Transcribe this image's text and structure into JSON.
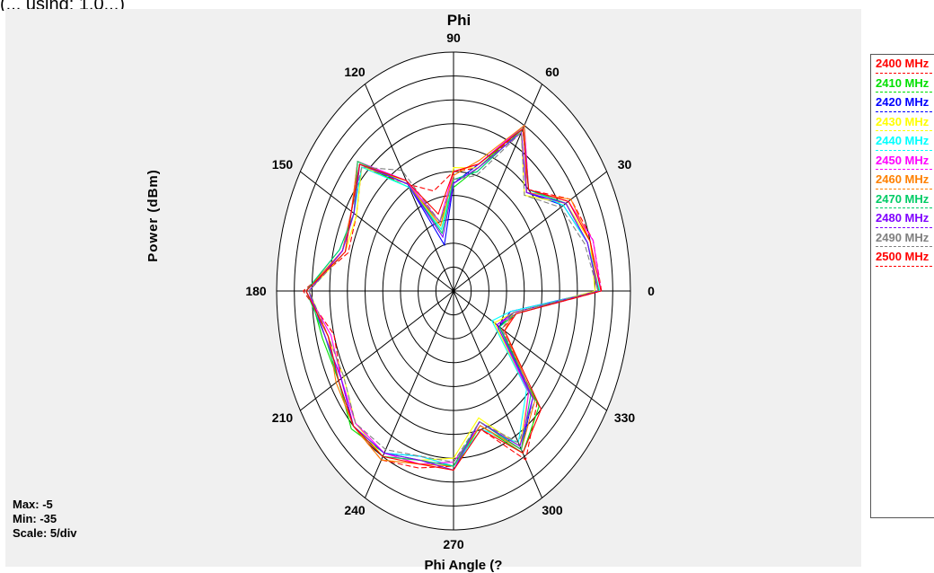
{
  "window": {
    "top_fragment": "(... using: 1.0...)"
  },
  "chart_data": {
    "type": "polar-line",
    "title": "Phi",
    "xlabel": "Phi Angle (?",
    "ylabel": "Power (dBm)",
    "radial_range_dbm": [
      -35,
      -5
    ],
    "radial_step_dbm": 3,
    "angular_labels": [
      "90",
      "60",
      "30",
      "0",
      "330",
      "300",
      "270",
      "240",
      "210",
      "180",
      "150",
      "120"
    ],
    "angles_deg": [
      0,
      15,
      30,
      45,
      60,
      75,
      90,
      105,
      120,
      135,
      150,
      165,
      180,
      195,
      210,
      225,
      240,
      255,
      270,
      285,
      300,
      315,
      330,
      345
    ],
    "grid": true,
    "legend_position": "right",
    "stats": {
      "max": "Max: -5",
      "min": "Min: -35",
      "scale": "Scale: 5/div"
    },
    "series": [
      {
        "name": "2400 MHz",
        "color": "#ff0000",
        "dash": true,
        "values": [
          -9.9,
          -10.5,
          -12,
          -17,
          -11.5,
          -19,
          -20,
          -22,
          -19.5,
          -13,
          -16,
          -16.5,
          -9.5,
          -14,
          -13,
          -11,
          -10.5,
          -12,
          -13,
          -17,
          -10.5,
          -15,
          -25.5,
          -24
        ]
      },
      {
        "name": "2410 MHz",
        "color": "#00e000",
        "dash": false,
        "values": [
          -10.3,
          -11.5,
          -13,
          -17,
          -11,
          -19,
          -22,
          -26,
          -20,
          -12.5,
          -15.5,
          -15.5,
          -10.5,
          -12,
          -12.5,
          -10.5,
          -11.5,
          -13,
          -12.5,
          -17.5,
          -11.5,
          -14.5,
          -26,
          -24.5
        ]
      },
      {
        "name": "2420 MHz",
        "color": "#0000ff",
        "dash": false,
        "values": [
          -10.5,
          -11.5,
          -13.5,
          -17.5,
          -11,
          -18.5,
          -21.5,
          -29,
          -19.5,
          -12.5,
          -15,
          -15.5,
          -10.5,
          -12.5,
          -13,
          -11,
          -11.5,
          -13.5,
          -13,
          -18,
          -12,
          -16,
          -26,
          -25
        ]
      },
      {
        "name": "2430 MHz",
        "color": "#ffff00",
        "dash": false,
        "values": [
          -11,
          -11,
          -13,
          -18,
          -12,
          -19,
          -19.5,
          -27,
          -19,
          -13,
          -16,
          -16,
          -10.5,
          -13,
          -13.5,
          -11.5,
          -11,
          -13,
          -14,
          -18.5,
          -12.5,
          -17,
          -27,
          -24.5
        ]
      },
      {
        "name": "2440 MHz",
        "color": "#00ffff",
        "dash": false,
        "values": [
          -10.2,
          -11.5,
          -13.5,
          -17,
          -11.5,
          -19.5,
          -21,
          -27,
          -20,
          -13,
          -15.5,
          -15,
          -10,
          -13,
          -12.5,
          -11,
          -11.5,
          -13.5,
          -13,
          -17,
          -13,
          -17.5,
          -27.5,
          -25
        ]
      },
      {
        "name": "2450 MHz",
        "color": "#ff00ff",
        "dash": false,
        "values": [
          -10,
          -10.5,
          -12.5,
          -17,
          -11,
          -18.5,
          -20,
          -26,
          -19,
          -12,
          -15,
          -15.5,
          -10,
          -13.5,
          -13,
          -11.5,
          -11.5,
          -12.5,
          -13.5,
          -17.5,
          -12,
          -17,
          -26.5,
          -24
        ]
      },
      {
        "name": "2460 MHz",
        "color": "#ff8000",
        "dash": false,
        "values": [
          -10.5,
          -11,
          -12,
          -17.5,
          -11,
          -18,
          -20.5,
          -26.5,
          -19.5,
          -12,
          -15,
          -15.5,
          -10,
          -13,
          -12,
          -11,
          -10.5,
          -12.5,
          -13,
          -17.5,
          -12,
          -15.5,
          -25,
          -24.5
        ]
      },
      {
        "name": "2470 MHz",
        "color": "#00cc66",
        "dash": false,
        "values": [
          -10.5,
          -11.5,
          -13,
          -17,
          -11.5,
          -19.5,
          -21,
          -27.5,
          -19.5,
          -12,
          -15.5,
          -15,
          -10,
          -12.5,
          -12.5,
          -11,
          -11,
          -13,
          -13,
          -18,
          -12,
          -16.5,
          -26,
          -24
        ]
      },
      {
        "name": "2480 MHz",
        "color": "#8000ff",
        "dash": false,
        "values": [
          -10.5,
          -11.5,
          -13,
          -17.5,
          -12,
          -19,
          -21.5,
          -28,
          -19.5,
          -12.5,
          -15.5,
          -15.5,
          -10.5,
          -12.5,
          -13,
          -11,
          -11.5,
          -13,
          -12.5,
          -18,
          -12.5,
          -16,
          -26.5,
          -24.5
        ]
      },
      {
        "name": "2490 MHz",
        "color": "#808080",
        "dash": true,
        "values": [
          -10.5,
          -12,
          -14,
          -18,
          -12,
          -20,
          -21,
          -26,
          -17.5,
          -13,
          -15,
          -16,
          -10.5,
          -13,
          -13.5,
          -11.5,
          -12,
          -13.5,
          -13.5,
          -18,
          -13,
          -15.5,
          -25.5,
          -24.5
        ]
      },
      {
        "name": "2500 MHz",
        "color": "#ff0000",
        "dash": false,
        "values": [
          -10,
          -11,
          -12.5,
          -17,
          -11.5,
          -18.5,
          -20,
          -25,
          -19,
          -12.5,
          -15,
          -16,
          -10,
          -13,
          -12.5,
          -11,
          -11,
          -12.5,
          -12.5,
          -17,
          -11.5,
          -14,
          -25,
          -24
        ]
      }
    ]
  }
}
